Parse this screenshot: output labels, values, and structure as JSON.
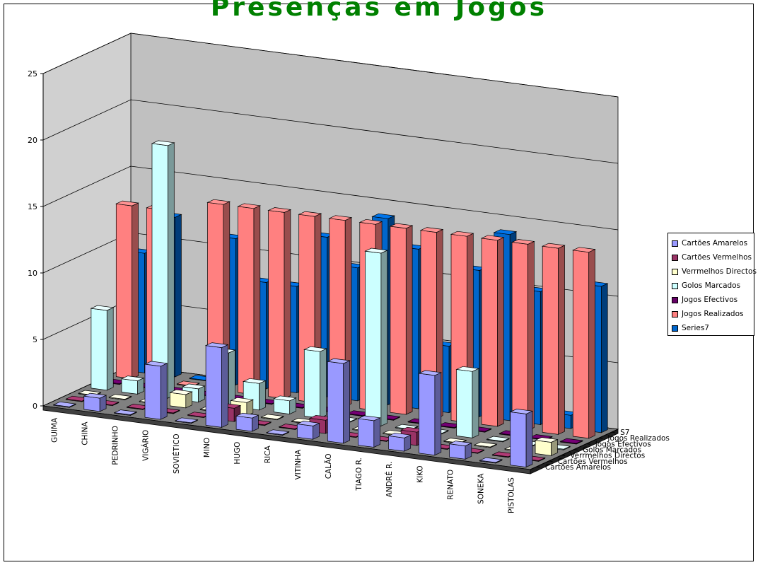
{
  "chart_data": {
    "type": "bar",
    "subtype": "3d-column",
    "title": "Presenças em Jogos",
    "title_color": "#008000",
    "categories": [
      "GUIMA",
      "CHINA",
      "PEDRINHO",
      "VIGÁRIO",
      "SOVIÉTICO",
      "MINO",
      "HUGO",
      "RICA",
      "VITINHA",
      "CALÃO",
      "TIAGO R.",
      "ANDRÉ R.",
      "KIKO",
      "RENATO",
      "SONEKA",
      "PISTOLAS"
    ],
    "ylim": [
      0,
      25
    ],
    "yticks": [
      "0",
      "5",
      "10",
      "15",
      "20",
      "25"
    ],
    "series_axis_labels": [
      "Cartões Amarelos",
      "Cartões Vermelhos",
      "Verrmelhos Directos",
      "Golos Marcados",
      "Jogos Efectivos",
      "Jogos Realizados",
      "S7"
    ],
    "legend_position": "right",
    "grid": true,
    "wall_color": "#c0c0c0",
    "floor_color": "#808080",
    "series": [
      {
        "name": "Cartões Amarelos",
        "color": "#9999ff",
        "values": [
          0,
          1,
          0,
          4,
          0,
          6,
          1,
          0,
          1,
          6,
          2,
          1,
          6,
          1,
          0,
          4
        ]
      },
      {
        "name": "Cartões Vermelhos",
        "color": "#993366",
        "values": [
          0,
          0,
          0,
          0,
          0,
          1,
          0,
          0,
          1,
          0,
          0,
          1,
          0,
          0,
          0,
          0
        ]
      },
      {
        "name": "Verrmelhos Directos",
        "color": "#ffffcc",
        "values": [
          0,
          0,
          0,
          1,
          0,
          1,
          0,
          0,
          0,
          0,
          0,
          0,
          0,
          0,
          0,
          1
        ]
      },
      {
        "name": "Golos Marcados",
        "color": "#ccffff",
        "values": [
          6,
          1,
          19,
          1,
          4,
          2,
          1,
          5,
          0,
          13,
          0,
          0,
          5,
          0,
          0,
          0
        ]
      },
      {
        "name": "Jogos Efectivos",
        "color": "#660066",
        "values": [
          0,
          0,
          0,
          0,
          0,
          0,
          0,
          0,
          0,
          0,
          0,
          0,
          0,
          0,
          0,
          0
        ]
      },
      {
        "name": "Jogos Realizados",
        "color": "#ff8080",
        "values": [
          13,
          13,
          0,
          14,
          14,
          14,
          14,
          14,
          14,
          14,
          14,
          14,
          14,
          14,
          14,
          14
        ]
      },
      {
        "name": "Series7",
        "color": "#0066cc",
        "values": [
          9,
          12,
          0,
          11,
          8,
          8,
          12,
          10,
          14,
          12,
          5,
          11,
          14,
          10,
          1,
          11
        ]
      }
    ]
  },
  "legend": {
    "items": [
      {
        "label": "Cartões Amarelos",
        "color": "#9999ff"
      },
      {
        "label": "Cartões Vermelhos",
        "color": "#993366"
      },
      {
        "label": "Verrmelhos Directos",
        "color": "#ffffcc"
      },
      {
        "label": "Golos Marcados",
        "color": "#ccffff"
      },
      {
        "label": "Jogos Efectivos",
        "color": "#660066"
      },
      {
        "label": "Jogos Realizados",
        "color": "#ff8080"
      },
      {
        "label": "Series7",
        "color": "#0066cc"
      }
    ]
  }
}
